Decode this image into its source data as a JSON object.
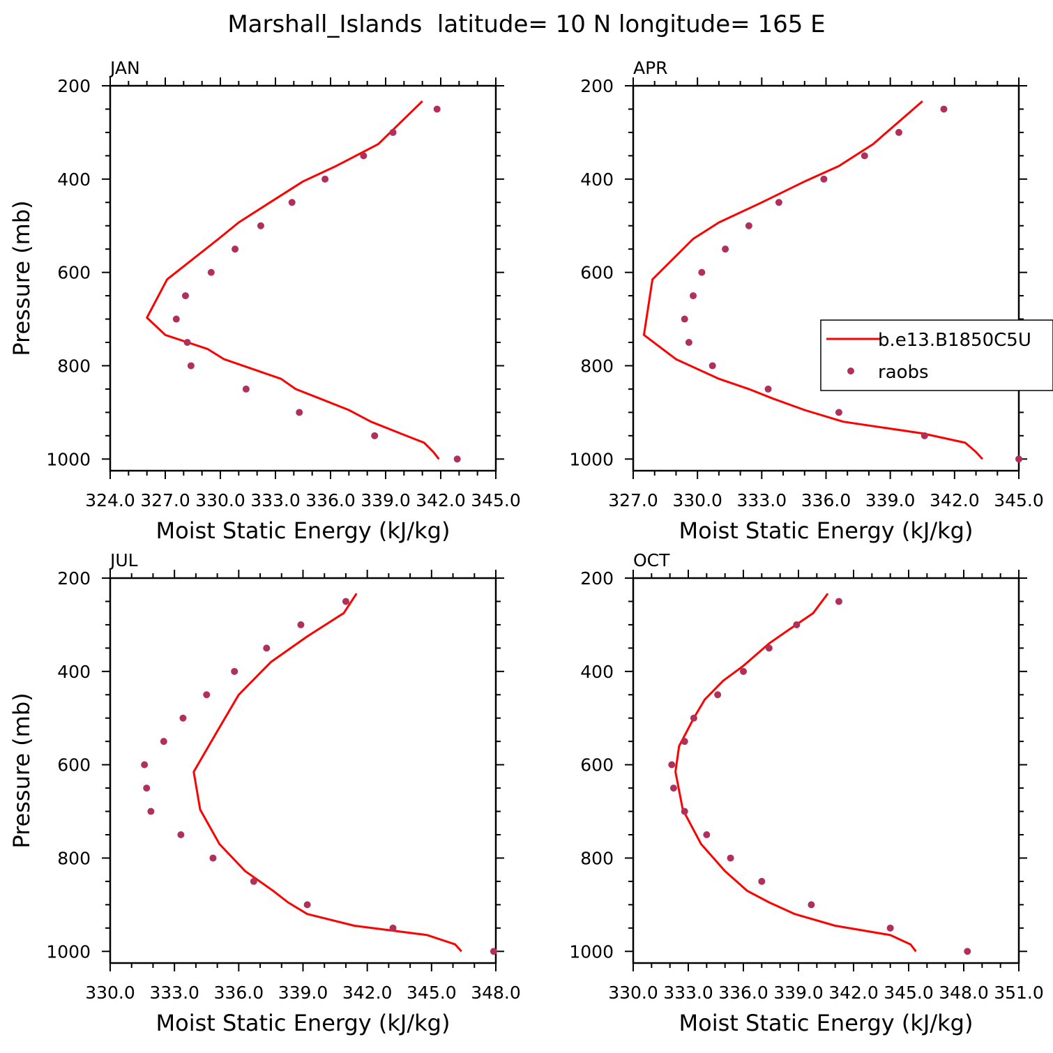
{
  "title": "Marshall_Islands  latitude= 10 N longitude= 165 E",
  "legend": {
    "model_label": "b.e13.B1850C5U",
    "obs_label": "raobs",
    "position": "right of APR panel"
  },
  "colors": {
    "model": "#ff0000",
    "obs": "#b0305a"
  },
  "chart_data": [
    {
      "type": "line",
      "panel": "JAN",
      "title": "JAN",
      "xlabel": "Moist Static Energy (kJ/kg)",
      "ylabel": "Pressure (mb)",
      "xlim": [
        324.0,
        345.0
      ],
      "xticks": [
        324.0,
        327.0,
        330.0,
        333.0,
        336.0,
        339.0,
        342.0,
        345.0
      ],
      "xtick_labels": [
        "324.0",
        "327.0",
        "330.0",
        "333.0",
        "336.0",
        "339.0",
        "342.0",
        "345.0"
      ],
      "ylim": [
        1025,
        200
      ],
      "yticks": [
        200,
        400,
        600,
        800,
        1000
      ],
      "yticklabels": [
        "200",
        "400",
        "600",
        "800",
        "1000"
      ],
      "series": [
        {
          "name": "b.e13.B1850C5U",
          "kind": "line",
          "x": [
            341.9,
            341.6,
            341.1,
            339.8,
            338.2,
            337.0,
            335.4,
            334.1,
            333.3,
            330.2,
            329.3,
            327.0,
            326.0,
            327.1,
            329.9,
            331.0,
            332.7,
            334.5,
            336.3,
            338.6,
            341.0
          ],
          "y": [
            1000,
            985,
            965,
            945,
            920,
            895,
            870,
            850,
            828,
            786,
            764,
            734,
            697,
            615,
            528,
            493,
            450,
            405,
            372,
            325,
            233
          ]
        },
        {
          "name": "raobs",
          "kind": "scatter",
          "x": [
            342.9,
            338.4,
            334.3,
            331.4,
            328.4,
            328.2,
            327.6,
            328.1,
            329.5,
            330.8,
            332.2,
            333.9,
            335.7,
            337.8,
            339.4,
            341.8
          ],
          "y": [
            1000,
            950,
            900,
            850,
            800,
            750,
            700,
            650,
            600,
            550,
            500,
            450,
            400,
            350,
            300,
            250
          ]
        }
      ]
    },
    {
      "type": "line",
      "panel": "APR",
      "title": "APR",
      "xlabel": "Moist Static Energy (kJ/kg)",
      "ylabel": "",
      "xlim": [
        327.0,
        345.0
      ],
      "xticks": [
        327.0,
        330.0,
        333.0,
        336.0,
        339.0,
        342.0,
        345.0
      ],
      "xtick_labels": [
        "327.0",
        "330.0",
        "333.0",
        "336.0",
        "339.0",
        "342.0",
        "345.0"
      ],
      "ylim": [
        1025,
        200
      ],
      "yticks": [
        200,
        400,
        600,
        800,
        1000
      ],
      "yticklabels": [
        "200",
        "400",
        "600",
        "800",
        "1000"
      ],
      "series": [
        {
          "name": "b.e13.B1850C5U",
          "kind": "line",
          "x": [
            343.3,
            343.0,
            342.5,
            340.5,
            336.8,
            335.0,
            333.5,
            332.4,
            331.0,
            329.0,
            327.5,
            327.9,
            329.8,
            331.0,
            333.0,
            335.0,
            336.6,
            338.2,
            340.5
          ],
          "y": [
            1000,
            985,
            965,
            945,
            920,
            895,
            870,
            850,
            828,
            786,
            734,
            615,
            528,
            493,
            450,
            405,
            372,
            325,
            233
          ]
        },
        {
          "name": "raobs",
          "kind": "scatter",
          "x": [
            345.0,
            340.6,
            336.6,
            333.3,
            330.7,
            329.6,
            329.4,
            329.8,
            330.2,
            331.3,
            332.4,
            333.8,
            335.9,
            337.8,
            339.4,
            341.5
          ],
          "y": [
            1000,
            950,
            900,
            850,
            800,
            750,
            700,
            650,
            600,
            550,
            500,
            450,
            400,
            350,
            300,
            250
          ]
        }
      ]
    },
    {
      "type": "line",
      "panel": "JUL",
      "title": "JUL",
      "xlabel": "Moist Static Energy (kJ/kg)",
      "ylabel": "Pressure (mb)",
      "xlim": [
        330.0,
        348.0
      ],
      "xticks": [
        330.0,
        333.0,
        336.0,
        339.0,
        342.0,
        345.0,
        348.0
      ],
      "xtick_labels": [
        "330.0",
        "333.0",
        "336.0",
        "339.0",
        "342.0",
        "345.0",
        "348.0"
      ],
      "ylim": [
        1025,
        200
      ],
      "yticks": [
        200,
        400,
        600,
        800,
        1000
      ],
      "yticklabels": [
        "200",
        "400",
        "600",
        "800",
        "1000"
      ],
      "series": [
        {
          "name": "b.e13.B1850C5U",
          "kind": "line",
          "x": [
            346.4,
            346.1,
            344.8,
            341.4,
            339.2,
            338.3,
            337.6,
            336.3,
            335.1,
            334.2,
            333.9,
            335.0,
            336.0,
            337.5,
            339.2,
            340.9,
            341.5
          ],
          "y": [
            1000,
            985,
            965,
            945,
            920,
            895,
            870,
            828,
            770,
            696,
            615,
            528,
            450,
            380,
            325,
            275,
            233
          ]
        },
        {
          "name": "raobs",
          "kind": "scatter",
          "x": [
            347.9,
            343.2,
            339.2,
            336.7,
            334.8,
            333.3,
            331.9,
            331.7,
            331.6,
            332.5,
            333.4,
            334.5,
            335.8,
            337.3,
            338.9,
            341.0
          ],
          "y": [
            1000,
            950,
            900,
            850,
            800,
            750,
            700,
            650,
            600,
            550,
            500,
            450,
            400,
            350,
            300,
            250
          ]
        }
      ]
    },
    {
      "type": "line",
      "panel": "OCT",
      "title": "OCT",
      "xlabel": "Moist Static Energy (kJ/kg)",
      "ylabel": "",
      "xlim": [
        330.0,
        351.0
      ],
      "xticks": [
        330.0,
        333.0,
        336.0,
        339.0,
        342.0,
        345.0,
        348.0,
        351.0
      ],
      "xtick_labels": [
        "330.0",
        "333.0",
        "336.0",
        "339.0",
        "342.0",
        "345.0",
        "348.0",
        "351.0"
      ],
      "ylim": [
        1025,
        200
      ],
      "yticks": [
        200,
        400,
        600,
        800,
        1000
      ],
      "yticklabels": [
        "200",
        "400",
        "600",
        "800",
        "1000"
      ],
      "series": [
        {
          "name": "b.e13.B1850C5U",
          "kind": "line",
          "x": [
            345.4,
            345.1,
            344.0,
            341.0,
            338.8,
            337.4,
            336.2,
            335.0,
            333.7,
            332.7,
            332.3,
            332.5,
            333.3,
            333.9,
            334.9,
            336.0,
            337.4,
            338.5,
            339.8,
            340.6
          ],
          "y": [
            1000,
            985,
            965,
            945,
            920,
            895,
            870,
            828,
            770,
            696,
            615,
            560,
            500,
            460,
            420,
            388,
            340,
            310,
            275,
            233
          ]
        },
        {
          "name": "raobs",
          "kind": "scatter",
          "x": [
            348.2,
            344.0,
            339.7,
            337.0,
            335.3,
            334.0,
            332.8,
            332.2,
            332.1,
            332.8,
            333.3,
            334.6,
            336.0,
            337.4,
            338.9,
            341.2
          ],
          "y": [
            1000,
            950,
            900,
            850,
            800,
            750,
            700,
            650,
            600,
            550,
            500,
            450,
            400,
            350,
            300,
            250
          ]
        }
      ]
    }
  ]
}
